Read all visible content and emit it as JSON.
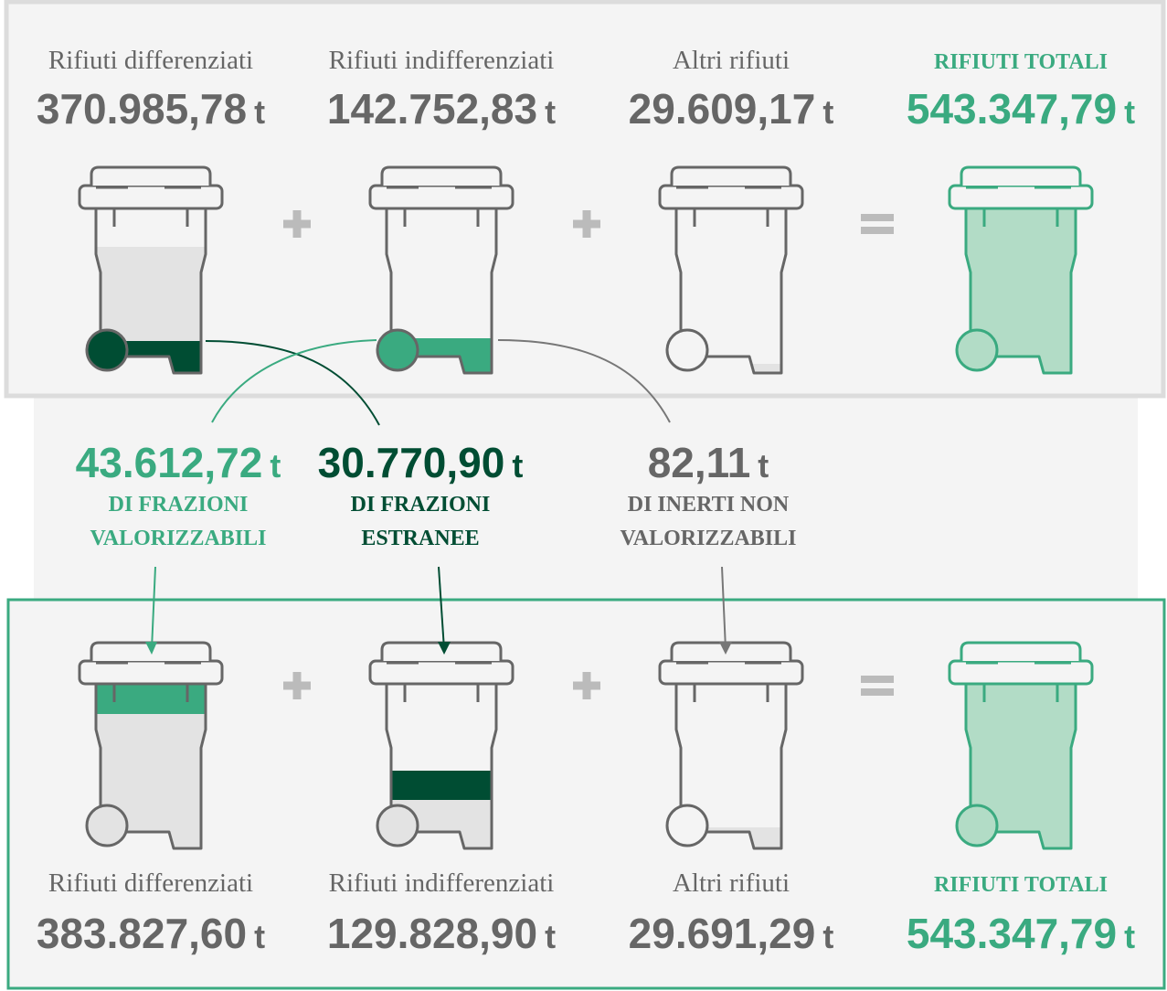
{
  "top": {
    "items": [
      {
        "label": "Rifiuti differenziati",
        "value": "370.985,78",
        "unit": "t"
      },
      {
        "label": "Rifiuti indifferenziati",
        "value": "142.752,83",
        "unit": "t"
      },
      {
        "label": "Altri rifiuti",
        "value": "29.609,17",
        "unit": "t"
      },
      {
        "label": "RIFIUTI TOTALI",
        "value": "543.347,79",
        "unit": "t"
      }
    ]
  },
  "transfers": [
    {
      "value": "43.612,72",
      "unit": "t",
      "label": [
        "DI FRAZIONI",
        "VALORIZZABILI"
      ]
    },
    {
      "value": "30.770,90",
      "unit": "t",
      "label": [
        "DI FRAZIONI",
        "ESTRANEE"
      ]
    },
    {
      "value": "82,11",
      "unit": "t",
      "label": [
        "DI INERTI NON",
        "VALORIZZABILI"
      ]
    }
  ],
  "bottom": {
    "items": [
      {
        "label": "Rifiuti differenziati",
        "value": "383.827,60",
        "unit": "t"
      },
      {
        "label": "Rifiuti indifferenziati",
        "value": "129.828,90",
        "unit": "t"
      },
      {
        "label": "Altri rifiuti",
        "value": "29.691,29",
        "unit": "t"
      },
      {
        "label": "RIFIUTI TOTALI",
        "value": "543.347,79",
        "unit": "t"
      }
    ]
  }
}
